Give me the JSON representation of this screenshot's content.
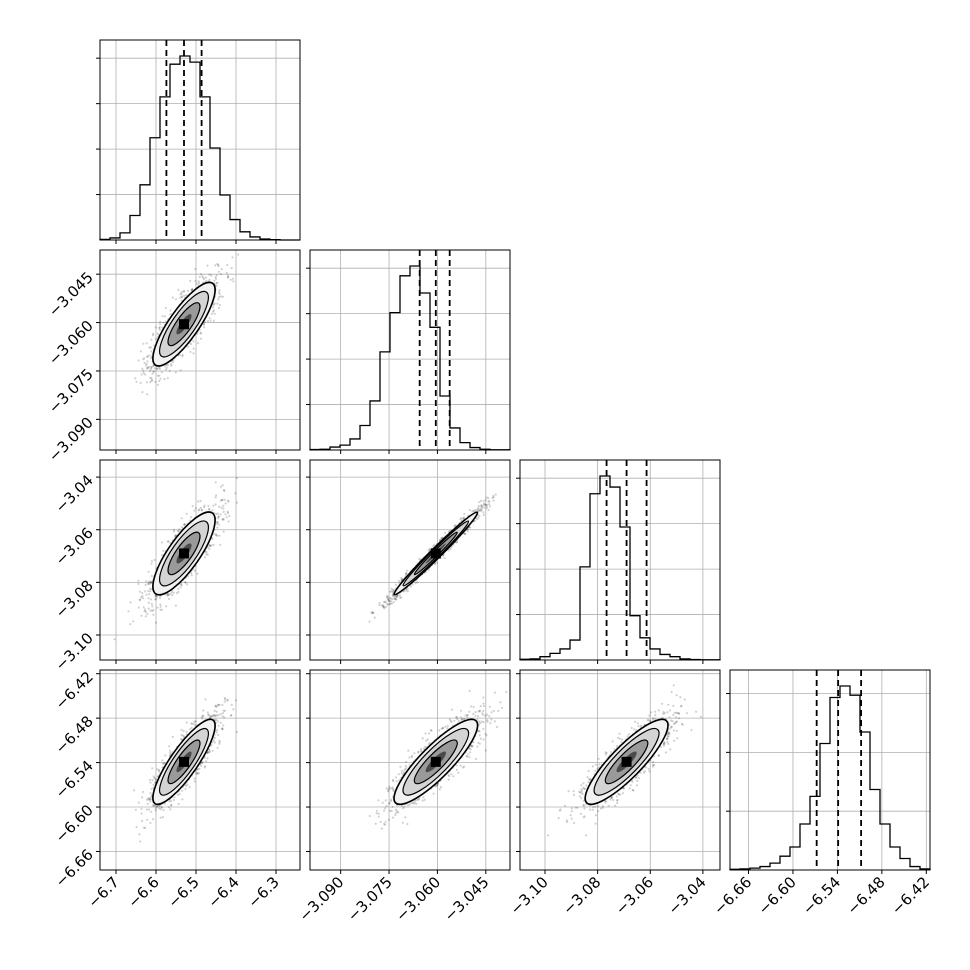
{
  "chart_data": {
    "type": "corner",
    "title": "",
    "grid": true,
    "quantiles": [
      0.16,
      0.5,
      0.84
    ],
    "parameters": [
      {
        "name": "",
        "range": [
          -6.74,
          -6.24
        ],
        "ticks": [
          -6.7,
          -6.6,
          -6.5,
          -6.4,
          -6.3
        ],
        "tick_labels": [
          "−6.7",
          "−6.6",
          "−6.5",
          "−6.4",
          "−6.3"
        ],
        "quantile_values": [
          -6.574,
          -6.53,
          -6.486
        ],
        "hist": [
          0.3,
          1.0,
          3.5,
          12,
          27,
          50,
          70,
          86,
          90,
          87,
          70,
          45,
          22,
          10,
          4,
          1.5,
          0.5,
          0.2,
          0,
          0
        ]
      },
      {
        "name": "",
        "range": [
          -3.0995,
          -3.0375
        ],
        "ticks": [
          -3.09,
          -3.075,
          -3.06,
          -3.045
        ],
        "tick_labels": [
          "−3.090",
          "−3.075",
          "−3.060",
          "−3.045"
        ],
        "quantile_values": [
          -3.0655,
          -3.0605,
          -3.0562
        ],
        "hist": [
          0.2,
          0.3,
          1.2,
          2,
          4.5,
          10,
          20,
          40,
          56,
          71,
          75,
          64,
          50,
          22,
          9,
          3,
          1,
          0.3,
          0.1,
          0.1
        ]
      },
      {
        "name": "",
        "range": [
          -3.1095,
          -3.0335
        ],
        "ticks": [
          -3.1,
          -3.08,
          -3.06,
          -3.04
        ],
        "tick_labels": [
          "−3.10",
          "−3.08",
          "−3.06",
          "−3.04"
        ],
        "quantile_values": [
          -3.0766,
          -3.069,
          -3.0614
        ],
        "hist": [
          0.3,
          0.5,
          1.5,
          3,
          5,
          9,
          42,
          75,
          83,
          78,
          60,
          20,
          10,
          5,
          2.5,
          1.5,
          0.5,
          0.2,
          0.1,
          0.1
        ]
      },
      {
        "name": "",
        "range": [
          -6.685,
          -6.415
        ],
        "ticks": [
          -6.66,
          -6.6,
          -6.54,
          -6.48,
          -6.42
        ],
        "tick_labels": [
          "−6.66",
          "−6.60",
          "−6.54",
          "−6.48",
          "−6.42"
        ],
        "quantile_values": [
          -6.568,
          -6.539,
          -6.508
        ],
        "hist": [
          0.3,
          0.5,
          0.8,
          1.5,
          3,
          6,
          10,
          20,
          32,
          55,
          75,
          80,
          76,
          60,
          35,
          20,
          10,
          5,
          1.5,
          0.5
        ]
      }
    ],
    "pairs": [
      {
        "row": 1,
        "col": 0,
        "center": [
          -6.53,
          -3.0605
        ],
        "sd": [
          0.042,
          0.007
        ],
        "rho": 0.82
      },
      {
        "row": 2,
        "col": 0,
        "center": [
          -6.53,
          -3.069
        ],
        "sd": [
          0.042,
          0.0085
        ],
        "rho": 0.8
      },
      {
        "row": 2,
        "col": 1,
        "center": [
          -3.0605,
          -3.069
        ],
        "sd": [
          0.007,
          0.0085
        ],
        "rho": 0.985
      },
      {
        "row": 3,
        "col": 0,
        "center": [
          -6.53,
          -6.539
        ],
        "sd": [
          0.042,
          0.031
        ],
        "rho": 0.85
      },
      {
        "row": 3,
        "col": 1,
        "center": [
          -3.0605,
          -6.539
        ],
        "sd": [
          0.007,
          0.031
        ],
        "rho": 0.86
      },
      {
        "row": 3,
        "col": 2,
        "center": [
          -3.069,
          -6.539
        ],
        "sd": [
          0.0085,
          0.031
        ],
        "rho": 0.86
      }
    ]
  }
}
